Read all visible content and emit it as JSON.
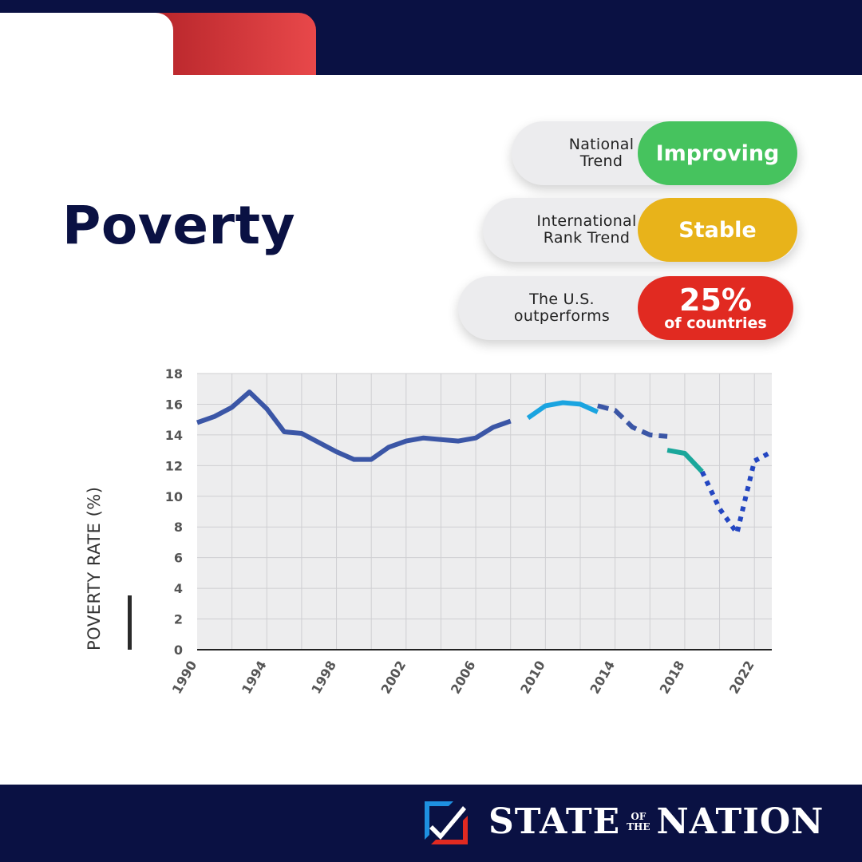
{
  "page": {
    "title": "Poverty"
  },
  "metrics": [
    {
      "label_line1": "National",
      "label_line2": "Trend",
      "status": "Improving",
      "color": "#46c35e"
    },
    {
      "label_line1": "International",
      "label_line2": "Rank Trend",
      "status": "Stable",
      "color": "#e8b31a"
    },
    {
      "label_line1": "The U.S.",
      "label_line2": "outperforms",
      "status_big": "25%",
      "status_small": "of countries",
      "color": "#e12a21"
    }
  ],
  "chart_data": {
    "type": "line",
    "title": "",
    "xlabel": "",
    "ylabel": "POVERTY RATE (%)",
    "xlim": [
      1990,
      2023
    ],
    "ylim": [
      0,
      18
    ],
    "y_ticks": [
      0,
      2,
      4,
      6,
      8,
      10,
      12,
      14,
      16,
      18
    ],
    "x_ticks": [
      1990,
      1994,
      1998,
      2002,
      2006,
      2010,
      2014,
      2018,
      2022
    ],
    "grid": true,
    "series": [
      {
        "color": "#3b56a6",
        "style": "solid",
        "x": [
          1990,
          1991,
          1992,
          1993,
          1994,
          1995,
          1996,
          1997,
          1998,
          1999,
          2000,
          2001,
          2002,
          2003,
          2004,
          2005,
          2006,
          2007,
          2008
        ],
        "y": [
          14.8,
          15.2,
          15.8,
          16.8,
          15.7,
          14.2,
          14.1,
          13.5,
          12.9,
          12.4,
          12.4,
          13.2,
          13.6,
          13.8,
          13.7,
          13.6,
          13.8,
          14.5,
          14.9
        ]
      },
      {
        "color": "#1aa4e0",
        "style": "solid",
        "x": [
          2009,
          2010,
          2011,
          2012,
          2013
        ],
        "y": [
          15.1,
          15.9,
          16.1,
          16.0,
          15.5
        ]
      },
      {
        "color": "#3b56a6",
        "style": "dashed",
        "x": [
          2013,
          2014,
          2015,
          2016,
          2017
        ],
        "y": [
          15.9,
          15.6,
          14.5,
          14.0,
          13.9
        ]
      },
      {
        "color": "#1aa79b",
        "style": "solid",
        "x": [
          2017,
          2018,
          2019
        ],
        "y": [
          13.0,
          12.8,
          11.6
        ]
      },
      {
        "color": "#2346c2",
        "style": "dotted",
        "x": [
          2019,
          2020,
          2021,
          2022,
          2023
        ],
        "y": [
          11.6,
          9.2,
          7.6,
          12.3,
          12.9
        ]
      }
    ]
  },
  "footer": {
    "brand_left": "STATE",
    "brand_of": "OF",
    "brand_the": "THE",
    "brand_right": "NATION"
  }
}
